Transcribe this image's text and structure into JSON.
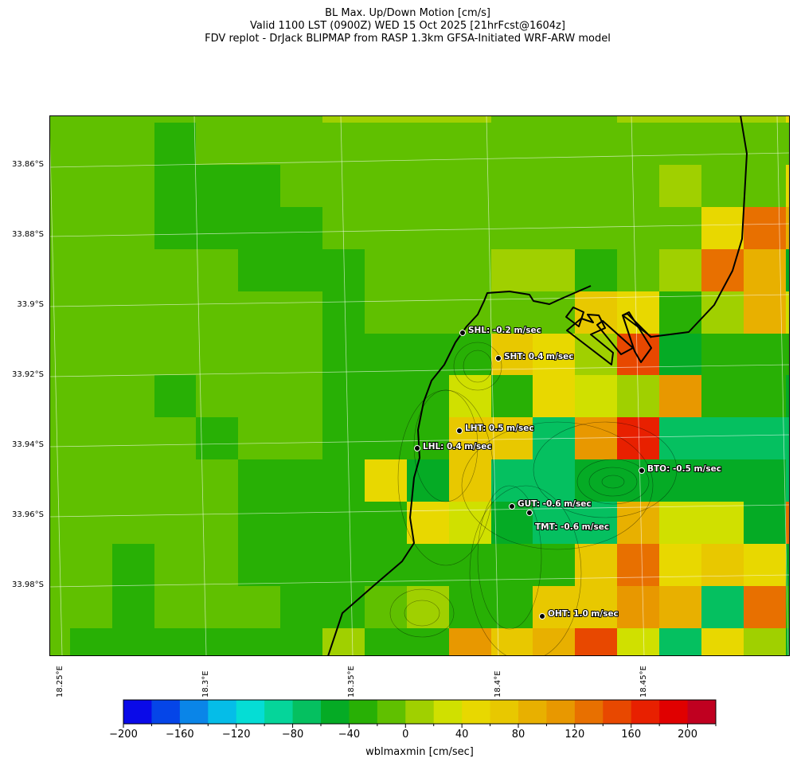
{
  "header": {
    "line1": "BL Max. Up/Down Motion [cm/s]",
    "line2": "Valid 1100 LST (0900Z) WED 15 Oct 2025 [21hrFcst@1604z]",
    "line3": "FDV replot - DrJack BLIPMAP from RASP 1.3km GFSA-Initiated WRF-ARW model"
  },
  "axes": {
    "lat_labels": [
      "33.86°S",
      "33.88°S",
      "33.9°S",
      "33.92°S",
      "33.94°S",
      "33.96°S",
      "33.98°S"
    ],
    "lon_labels": [
      "18.25°E",
      "18.3°E",
      "18.35°E",
      "18.4°E",
      "18.45°E"
    ]
  },
  "stations": [
    {
      "id": "SHL",
      "label": "SHL: -0.2 m/sec"
    },
    {
      "id": "SHT",
      "label": "SHT: 0.4 m/sec"
    },
    {
      "id": "LHT",
      "label": "LHT: 0.5 m/sec"
    },
    {
      "id": "LHL",
      "label": "LHL: 0.4 m/sec"
    },
    {
      "id": "BTO",
      "label": "BTO: -0.5 m/sec"
    },
    {
      "id": "GUT",
      "label": "GUT: -0.6 m/sec"
    },
    {
      "id": "TMT",
      "label": "TMT: -0.6 m/sec"
    },
    {
      "id": "OHT",
      "label": "OHT: 1.0 m/sec"
    }
  ],
  "colorbar": {
    "title": "wblmaxmin [cm/sec]",
    "range": [
      -200,
      220
    ],
    "step": 20,
    "tick_labels": [
      "−200",
      "−160",
      "−120",
      "−80",
      "−40",
      "0",
      "40",
      "80",
      "120",
      "160",
      "200"
    ],
    "colors": [
      "#0a0ae8",
      "#0545e8",
      "#0a85e8",
      "#05bde8",
      "#05ddd5",
      "#05d59a",
      "#05c060",
      "#05ab25",
      "#28b005",
      "#60c000",
      "#a0d000",
      "#d0e000",
      "#e8d800",
      "#e8c800",
      "#e8b000",
      "#e89800",
      "#e87000",
      "#e84800",
      "#e82000",
      "#e00000",
      "#c00020"
    ]
  },
  "grid_code_bins": {
    "5": 5,
    "6": 6,
    "7": 7,
    "8": 8,
    "9": 9,
    "A": 10,
    "B": 11,
    "C": 12,
    "D": 13,
    "E": 14,
    "F": 15,
    "G": 16,
    "H": 17,
    "I": 18
  },
  "grid": [
    "9999999AAAA999AAAAC",
    "9998999999999999999C",
    "999888999999999A99CE",
    "9998888999999999CGE",
    "99999888999AA89AGE7",
    "9999999899999DC8AEB77",
    "99999998888DCAH7888",
    "9998999888B8CBAF8877",
    "9999899888DD6FI66667",
    "99999888C7D66777776C",
    "999998888CB766EBB7G",
    "9989988888888DGCDC7G",
    "998999889A88DDFE6G86G",
    "9888888A88FDEHB6CA7C"
  ]
}
